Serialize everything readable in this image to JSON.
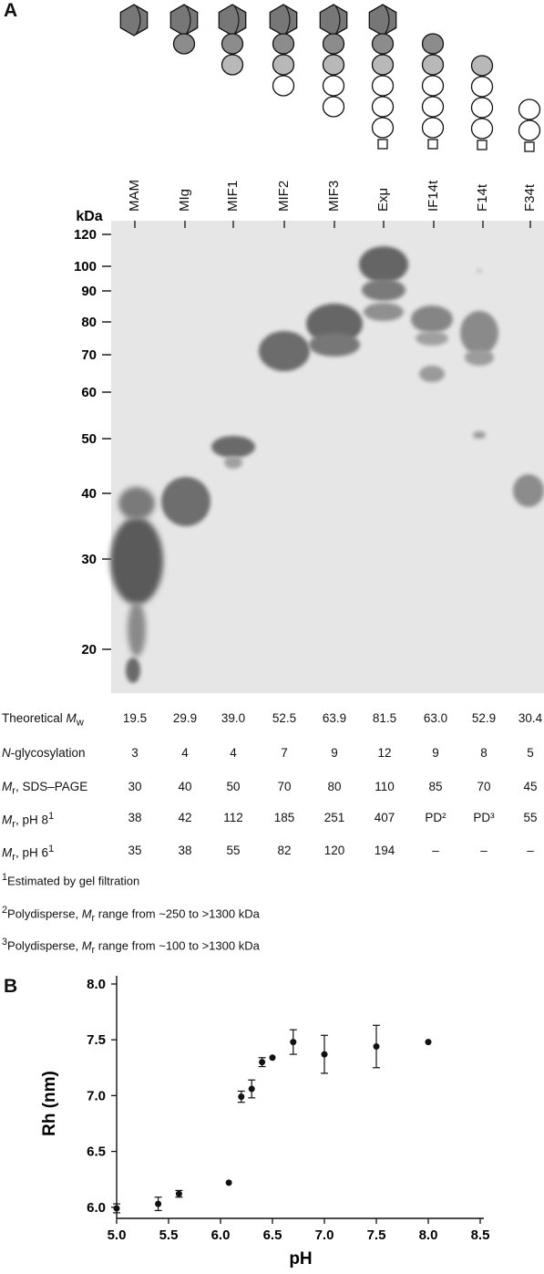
{
  "panel_a": {
    "label": "A",
    "kda_label": "kDa",
    "lanes": [
      "MAM",
      "MIg",
      "MIF1",
      "MIF2",
      "MIF3",
      "Exμ",
      "IF14t",
      "F14t",
      "F34t"
    ],
    "mw_ticks": [
      120,
      100,
      90,
      80,
      70,
      60,
      50,
      40,
      30,
      20
    ],
    "table": {
      "theoretical": {
        "label_pre": "Theoretical ",
        "label_em": "M",
        "label_sub": "w",
        "values": [
          "19.5",
          "29.9",
          "39.0",
          "52.5",
          "63.9",
          "81.5",
          "63.0",
          "52.9",
          "30.4"
        ]
      },
      "glyco": {
        "label_em": "N",
        "label_post": "-glycosylation",
        "values": [
          "3",
          "4",
          "4",
          "7",
          "9",
          "12",
          "9",
          "8",
          "5"
        ]
      },
      "sds": {
        "label_em": "M",
        "label_sub": "r",
        "label_post": ", SDS–PAGE",
        "values": [
          "30",
          "40",
          "50",
          "70",
          "80",
          "110",
          "85",
          "70",
          "45"
        ]
      },
      "ph8": {
        "label_em": "M",
        "label_sub": "r",
        "label_post": ", pH 8",
        "label_sup": "1",
        "values": [
          "38",
          "42",
          "112",
          "185",
          "251",
          "407",
          "PD²",
          "PD³",
          "55"
        ]
      },
      "ph6": {
        "label_em": "M",
        "label_sub": "r",
        "label_post": ", pH 6",
        "label_sup": "1",
        "values": [
          "35",
          "38",
          "55",
          "82",
          "120",
          "194",
          "–",
          "–",
          "–"
        ]
      }
    },
    "footnotes": {
      "f1": {
        "sup": "1",
        "text": "Estimated by gel filtration"
      },
      "f2": {
        "sup": "2",
        "pre": "Polydisperse, ",
        "em": "M",
        "sub": "r",
        "post": " range from ~250 to >1300 kDa"
      },
      "f3": {
        "sup": "3",
        "pre": "Polydisperse, ",
        "em": "M",
        "sub": "r",
        "post": " range from ~100 to >1300 kDa"
      }
    }
  },
  "panel_b": {
    "label": "B",
    "chart_data": {
      "type": "scatter",
      "xlabel": "pH",
      "ylabel": "Rh (nm)",
      "xlim": [
        5.0,
        8.5
      ],
      "ylim": [
        5.9,
        8.0
      ],
      "xticks": [
        "5.0",
        "5.5",
        "6.0",
        "6.5",
        "7.0",
        "7.5",
        "8.0",
        "8.5"
      ],
      "yticks": [
        "6.0",
        "6.5",
        "7.0",
        "7.5",
        "8.0"
      ],
      "points": [
        {
          "x": 5.0,
          "y": 5.99,
          "err": 0.04
        },
        {
          "x": 5.4,
          "y": 6.03,
          "err": 0.06
        },
        {
          "x": 5.6,
          "y": 6.12,
          "err": 0.03
        },
        {
          "x": 6.08,
          "y": 6.22,
          "err": 0
        },
        {
          "x": 6.2,
          "y": 6.99,
          "err": 0.05
        },
        {
          "x": 6.3,
          "y": 7.06,
          "err": 0.08
        },
        {
          "x": 6.4,
          "y": 7.3,
          "err": 0.04
        },
        {
          "x": 6.5,
          "y": 7.34,
          "err": 0
        },
        {
          "x": 6.7,
          "y": 7.48,
          "err": 0.11
        },
        {
          "x": 7.0,
          "y": 7.37,
          "err": 0.17
        },
        {
          "x": 7.5,
          "y": 7.44,
          "err": 0.19
        },
        {
          "x": 8.0,
          "y": 7.48,
          "err": 0
        }
      ]
    }
  }
}
